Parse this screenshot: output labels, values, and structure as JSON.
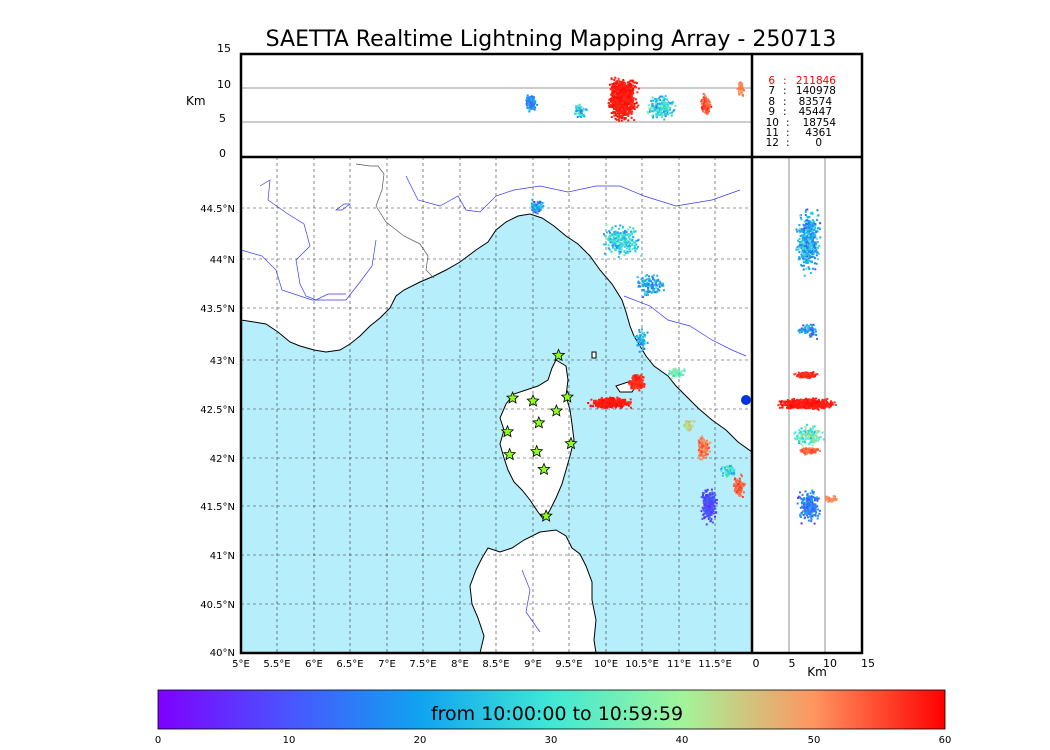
{
  "title": "SAETTA Realtime Lightning Mapping Array - 250713",
  "map": {
    "lon_labels": [
      "5°E",
      "5.5°E",
      "6°E",
      "6.5°E",
      "7°E",
      "7.5°E",
      "8°E",
      "8.5°E",
      "9°E",
      "9.5°E",
      "10°E",
      "10.5°E",
      "11°E",
      "11.5°E"
    ],
    "lat_labels": [
      "40°N",
      "40.5°N",
      "41°N",
      "41.5°N",
      "42°N",
      "42.5°N",
      "43°N",
      "43.5°N",
      "44°N",
      "44.5°N"
    ],
    "lon_range": [
      5,
      12
    ],
    "lat_range": [
      40,
      45
    ],
    "sea_color": "#b7eefc",
    "land_color": "#ffffff",
    "river_color": "#3a3aff",
    "station_color": "#8cff1a",
    "stations": [
      {
        "lon": 9.35,
        "lat": 43.0
      },
      {
        "lon": 8.72,
        "lat": 42.57
      },
      {
        "lon": 9.0,
        "lat": 42.54
      },
      {
        "lon": 9.47,
        "lat": 42.58
      },
      {
        "lon": 9.32,
        "lat": 42.44
      },
      {
        "lon": 9.08,
        "lat": 42.32
      },
      {
        "lon": 8.65,
        "lat": 42.23
      },
      {
        "lon": 9.52,
        "lat": 42.11
      },
      {
        "lon": 8.68,
        "lat": 42.0
      },
      {
        "lon": 9.05,
        "lat": 42.03
      },
      {
        "lon": 9.15,
        "lat": 41.85
      },
      {
        "lon": 9.18,
        "lat": 41.38
      }
    ]
  },
  "altitude_panel": {
    "unit_label": "Km",
    "y_ticks": [
      "0",
      "5",
      "10",
      "15"
    ],
    "range": [
      0,
      15
    ]
  },
  "side_panel": {
    "unit_label": "Km",
    "x_ticks": [
      "0",
      "5",
      "10",
      "15"
    ],
    "range": [
      0,
      15
    ]
  },
  "stats": [
    {
      "label": "6",
      "value": "211846",
      "color": "#ff0000"
    },
    {
      "label": "7",
      "value": "140978",
      "color": "#000000"
    },
    {
      "label": "8",
      "value": "83574",
      "color": "#000000"
    },
    {
      "label": "9",
      "value": "45447",
      "color": "#000000"
    },
    {
      "label": "10",
      "value": "18754",
      "color": "#000000"
    },
    {
      "label": "11",
      "value": "4361",
      "color": "#000000"
    },
    {
      "label": "12",
      "value": "0",
      "color": "#000000"
    }
  ],
  "colorbar": {
    "label": "from 10:00:00 to 10:59:59",
    "ticks": [
      "0",
      "10",
      "20",
      "30",
      "40",
      "50",
      "60"
    ],
    "range": [
      0,
      60
    ]
  }
}
